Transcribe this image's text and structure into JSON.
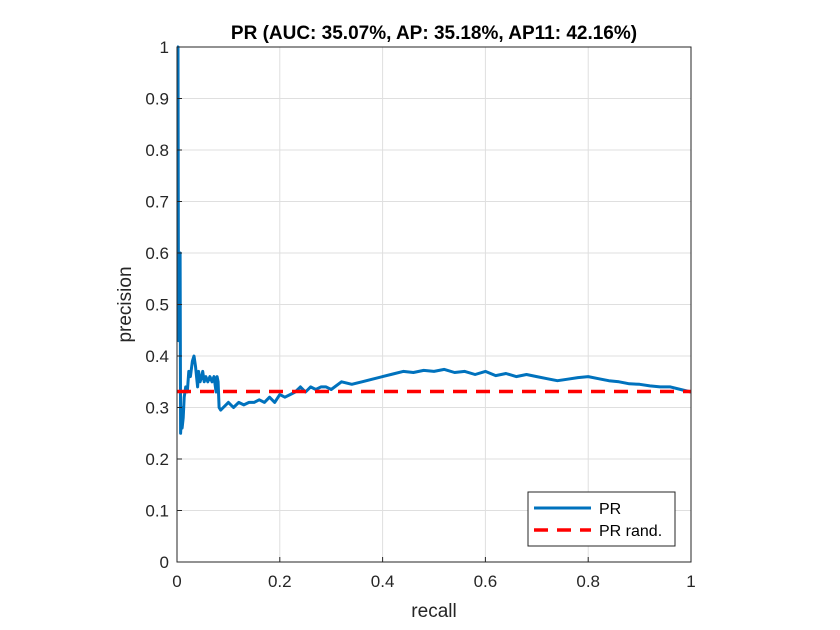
{
  "chart_data": {
    "type": "line",
    "title": "PR (AUC: 35.07%, AP: 35.18%, AP11: 42.16%)",
    "xlabel": "recall",
    "ylabel": "precision",
    "xlim": [
      0,
      1
    ],
    "ylim": [
      0,
      1
    ],
    "xticks": [
      0,
      0.2,
      0.4,
      0.6,
      0.8,
      1
    ],
    "xtick_labels": [
      "0",
      "0.2",
      "0.4",
      "0.6",
      "0.8",
      "1"
    ],
    "yticks": [
      0,
      0.1,
      0.2,
      0.3,
      0.4,
      0.5,
      0.6,
      0.7,
      0.8,
      0.9,
      1
    ],
    "ytick_labels": [
      "0",
      "0.1",
      "0.2",
      "0.3",
      "0.4",
      "0.5",
      "0.6",
      "0.7",
      "0.8",
      "0.9",
      "1"
    ],
    "grid": true,
    "legend_position": "bottom-right",
    "series": [
      {
        "name": "PR",
        "color": "#0072BD",
        "style": "solid",
        "x": [
          0.0,
          0.002,
          0.003,
          0.004,
          0.005,
          0.006,
          0.007,
          0.008,
          0.009,
          0.01,
          0.012,
          0.014,
          0.017,
          0.02,
          0.023,
          0.026,
          0.03,
          0.033,
          0.036,
          0.04,
          0.042,
          0.045,
          0.048,
          0.05,
          0.053,
          0.056,
          0.06,
          0.064,
          0.068,
          0.072,
          0.076,
          0.078,
          0.08,
          0.082,
          0.085,
          0.09,
          0.1,
          0.11,
          0.12,
          0.13,
          0.14,
          0.15,
          0.16,
          0.17,
          0.18,
          0.19,
          0.2,
          0.21,
          0.22,
          0.23,
          0.24,
          0.25,
          0.26,
          0.27,
          0.28,
          0.29,
          0.3,
          0.32,
          0.34,
          0.36,
          0.38,
          0.4,
          0.42,
          0.44,
          0.46,
          0.48,
          0.5,
          0.52,
          0.54,
          0.56,
          0.58,
          0.6,
          0.62,
          0.64,
          0.66,
          0.68,
          0.7,
          0.72,
          0.74,
          0.76,
          0.78,
          0.8,
          0.82,
          0.84,
          0.86,
          0.88,
          0.9,
          0.92,
          0.94,
          0.96,
          0.98,
          1.0
        ],
        "y": [
          1.0,
          1.0,
          0.43,
          0.6,
          0.45,
          0.6,
          0.25,
          0.27,
          0.3,
          0.26,
          0.28,
          0.32,
          0.34,
          0.33,
          0.37,
          0.36,
          0.39,
          0.4,
          0.38,
          0.34,
          0.37,
          0.35,
          0.36,
          0.37,
          0.35,
          0.36,
          0.35,
          0.36,
          0.35,
          0.36,
          0.33,
          0.36,
          0.35,
          0.3,
          0.295,
          0.3,
          0.31,
          0.3,
          0.31,
          0.305,
          0.31,
          0.31,
          0.315,
          0.31,
          0.32,
          0.31,
          0.325,
          0.32,
          0.325,
          0.33,
          0.34,
          0.33,
          0.34,
          0.335,
          0.34,
          0.34,
          0.335,
          0.35,
          0.345,
          0.35,
          0.355,
          0.36,
          0.365,
          0.37,
          0.368,
          0.372,
          0.37,
          0.374,
          0.368,
          0.37,
          0.364,
          0.37,
          0.362,
          0.366,
          0.36,
          0.364,
          0.36,
          0.356,
          0.352,
          0.355,
          0.358,
          0.36,
          0.356,
          0.352,
          0.35,
          0.346,
          0.345,
          0.342,
          0.34,
          0.34,
          0.335,
          0.33
        ]
      },
      {
        "name": "PR rand.",
        "color": "#FF0000",
        "style": "dashed",
        "x": [
          0,
          1
        ],
        "y": [
          0.331,
          0.331
        ]
      }
    ]
  }
}
